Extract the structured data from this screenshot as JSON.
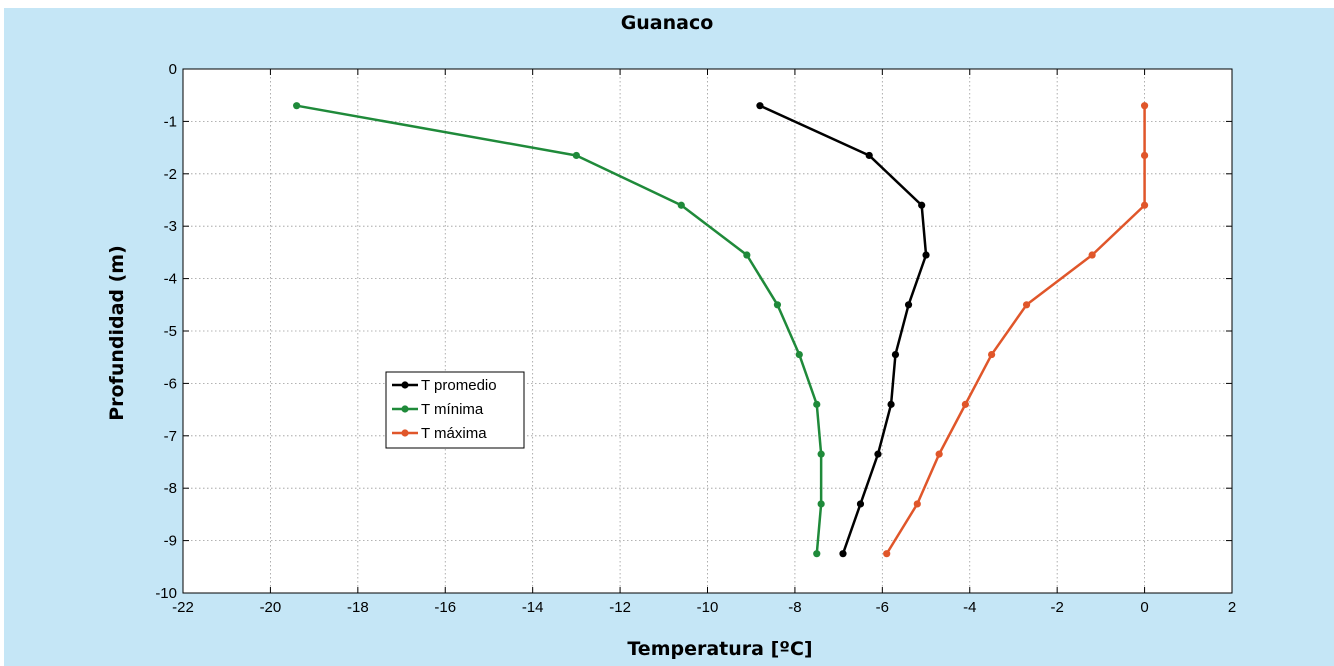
{
  "chart_data": {
    "type": "line",
    "title": "Guanaco",
    "xlabel": "Temperatura [ºC]",
    "ylabel": "Profundidad (m)",
    "xlim": [
      -22,
      2
    ],
    "ylim": [
      -10,
      0
    ],
    "xticks": [
      -22,
      -20,
      -18,
      -16,
      -14,
      -12,
      -10,
      -8,
      -6,
      -4,
      -2,
      0,
      2
    ],
    "yticks": [
      0,
      -1,
      -2,
      -3,
      -4,
      -5,
      -6,
      -7,
      -8,
      -9,
      -10
    ],
    "grid": true,
    "legend_position": "center-left",
    "depths": [
      -0.7,
      -1.65,
      -2.6,
      -3.55,
      -4.5,
      -5.45,
      -6.4,
      -7.35,
      -8.3,
      -9.25
    ],
    "series": [
      {
        "name": "T promedio",
        "color": "#000000",
        "x": [
          -8.8,
          -6.3,
          -5.1,
          -5.0,
          -5.4,
          -5.7,
          -5.8,
          -6.1,
          -6.5,
          -6.9
        ]
      },
      {
        "name": "T mínima",
        "color": "#1f8a3a",
        "x": [
          -19.4,
          -13.0,
          -10.6,
          -9.1,
          -8.4,
          -7.9,
          -7.5,
          -7.4,
          -7.4,
          -7.5
        ]
      },
      {
        "name": "T máxima",
        "color": "#e0562a",
        "x": [
          0.0,
          0.0,
          0.0,
          -1.2,
          -2.7,
          -3.5,
          -4.1,
          -4.7,
          -5.2,
          -5.9
        ]
      }
    ]
  }
}
